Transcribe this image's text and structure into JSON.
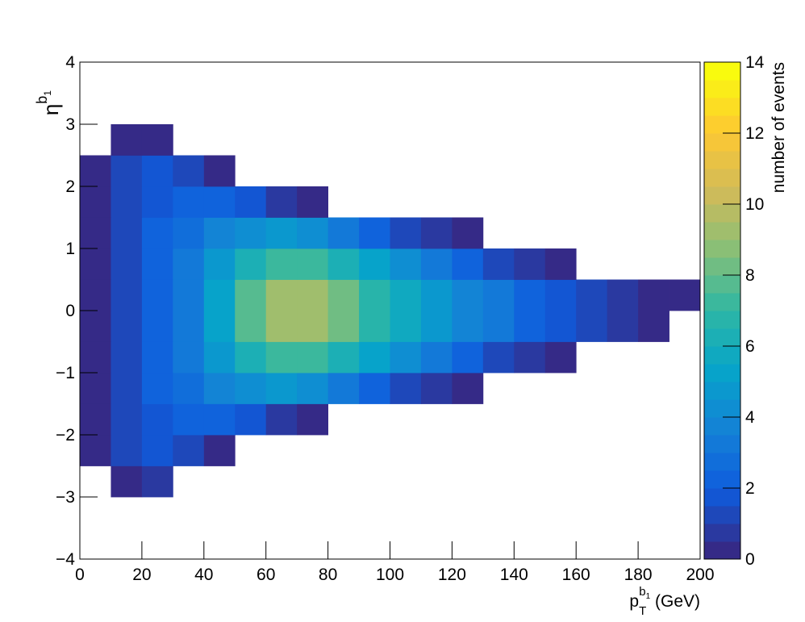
{
  "chart_data": {
    "type": "heatmap",
    "xlabel": {
      "symbol": "p",
      "sub": "T",
      "sup": "b",
      "sup_sub": "1",
      "unit": " (GeV)"
    },
    "ylabel": {
      "symbol": "η",
      "sup": "b",
      "sup_sub": "1"
    },
    "zlabel": "number of events",
    "x_bins": [
      0,
      10,
      20,
      30,
      40,
      50,
      60,
      70,
      80,
      90,
      100,
      110,
      120,
      130,
      140,
      150,
      160,
      170,
      180,
      190,
      200
    ],
    "y_bins": [
      -4,
      -3.5,
      -3,
      -2.5,
      -2,
      -1.5,
      -1,
      -0.5,
      0,
      0.5,
      1,
      1.5,
      2,
      2.5,
      3,
      3.5,
      4
    ],
    "z": [
      [
        0,
        0,
        0,
        0,
        0,
        0,
        0,
        0,
        0,
        0,
        0,
        0,
        0,
        0,
        0,
        0,
        0,
        0,
        0,
        0
      ],
      [
        0,
        0,
        0,
        0,
        0,
        0,
        0,
        0,
        0,
        0,
        0,
        0,
        0,
        0,
        0,
        0,
        0,
        0,
        0,
        0
      ],
      [
        0,
        0.3,
        0.5,
        0,
        0,
        0,
        0,
        0,
        0,
        0,
        0,
        0,
        0,
        0,
        0,
        0,
        0,
        0,
        0,
        0
      ],
      [
        0.2,
        1,
        1.5,
        1,
        0.3,
        0,
        0,
        0,
        0,
        0,
        0,
        0,
        0,
        0,
        0,
        0,
        0,
        0,
        0,
        0
      ],
      [
        0.2,
        1,
        1.8,
        2,
        2,
        1.5,
        0.8,
        0.2,
        0,
        0,
        0,
        0,
        0,
        0,
        0,
        0,
        0,
        0,
        0,
        0
      ],
      [
        0.2,
        1,
        2,
        2.5,
        3.5,
        4,
        4.5,
        4,
        3,
        2,
        1.2,
        0.5,
        0.1,
        0,
        0,
        0,
        0,
        0,
        0,
        0
      ],
      [
        0.3,
        1,
        2,
        3,
        4.5,
        6,
        7,
        7,
        6,
        5,
        4,
        3,
        2,
        1.3,
        0.6,
        0.1,
        0,
        0,
        0,
        0
      ],
      [
        0.3,
        1,
        2,
        3,
        5,
        7.5,
        9,
        9,
        8,
        6.5,
        5.5,
        4.5,
        3.5,
        3,
        2.3,
        1.8,
        1.2,
        0.7,
        0.3,
        0
      ],
      [
        0.3,
        1,
        2,
        3,
        5,
        7.5,
        9,
        9,
        8,
        6.5,
        5.5,
        4.5,
        3.5,
        3,
        2.3,
        1.8,
        1.2,
        0.7,
        0.3,
        0.1
      ],
      [
        0.3,
        1,
        2,
        3,
        4.5,
        6,
        7,
        7,
        6,
        5,
        4,
        3,
        2,
        1.3,
        0.6,
        0.2,
        0,
        0,
        0,
        0
      ],
      [
        0.2,
        1,
        2,
        2.5,
        3.5,
        4,
        4.5,
        4,
        3,
        2,
        1.2,
        0.5,
        0.1,
        0,
        0,
        0,
        0,
        0,
        0,
        0
      ],
      [
        0.2,
        1,
        1.8,
        2,
        2,
        1.5,
        0.8,
        0.2,
        0,
        0,
        0,
        0,
        0,
        0,
        0,
        0,
        0,
        0,
        0,
        0
      ],
      [
        0.2,
        1,
        1.5,
        1,
        0.3,
        0,
        0,
        0,
        0,
        0,
        0,
        0,
        0,
        0,
        0,
        0,
        0,
        0,
        0,
        0
      ],
      [
        0,
        0.3,
        0.3,
        0,
        0,
        0,
        0,
        0,
        0,
        0,
        0,
        0,
        0,
        0,
        0,
        0,
        0,
        0,
        0,
        0
      ],
      [
        0,
        0,
        0,
        0,
        0,
        0,
        0,
        0,
        0,
        0,
        0,
        0,
        0,
        0,
        0,
        0,
        0,
        0,
        0,
        0
      ],
      [
        0,
        0,
        0,
        0,
        0,
        0,
        0,
        0,
        0,
        0,
        0,
        0,
        0,
        0,
        0,
        0,
        0,
        0,
        0,
        0
      ]
    ],
    "xlim": [
      0,
      200
    ],
    "xticks": [
      0,
      20,
      40,
      60,
      80,
      100,
      120,
      140,
      160,
      180,
      200
    ],
    "ylim": [
      -4,
      4
    ],
    "yticks": [
      {
        "value": -4,
        "label": "−4"
      },
      {
        "value": -3,
        "label": "−3"
      },
      {
        "value": -2,
        "label": "−2"
      },
      {
        "value": -1,
        "label": "−1"
      },
      0,
      1,
      2,
      3,
      4
    ],
    "zlim": [
      0,
      14
    ],
    "zticks": [
      0,
      2,
      4,
      6,
      8,
      10,
      12,
      14
    ],
    "colorscale": [
      "#352a87",
      "#0f5cdd",
      "#1481d6",
      "#06a4ca",
      "#2eb7a4",
      "#87bf77",
      "#d1bb59",
      "#fec832",
      "#f9fb0e"
    ]
  }
}
